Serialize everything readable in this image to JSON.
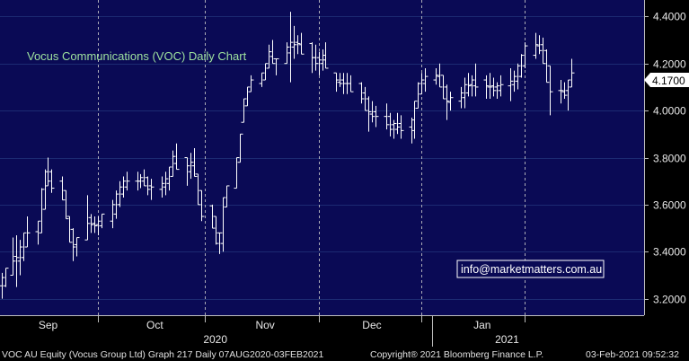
{
  "chart_data": {
    "type": "bar",
    "subtype": "ohlc",
    "title": "Vocus Communications (VOC) Daily Chart",
    "watermark": "info@marketmatters.com.au",
    "last_price_label": "4.1700",
    "y_ticks": [
      "4.4000",
      "4.2000",
      "4.0000",
      "3.8000",
      "3.6000",
      "3.4000",
      "3.2000"
    ],
    "y_tick_values": [
      4.4,
      4.2,
      4.0,
      3.8,
      3.6,
      3.4,
      3.2
    ],
    "ylim": [
      3.13,
      4.47
    ],
    "grid": true,
    "month_labels": [
      {
        "label": "Sep",
        "day": 13
      },
      {
        "label": "Oct",
        "day": 43
      },
      {
        "label": "Nov",
        "day": 74
      },
      {
        "label": "Dec",
        "day": 104
      },
      {
        "label": "Jan",
        "day": 135
      }
    ],
    "month_separators_day": [
      27,
      57,
      89,
      118,
      147
    ],
    "year_labels": [
      {
        "label": "2020",
        "day": 60
      },
      {
        "label": "2021",
        "day": 142
      }
    ],
    "year_separator_day": 121,
    "x_range_days": [
      0,
      180
    ],
    "start_date": "2020-08-07",
    "series": [
      {
        "values": [
          [
            0,
            3.31,
            3.2
          ],
          [
            1,
            3.33,
            3.25
          ],
          [
            3,
            3.46,
            3.3
          ],
          [
            4,
            3.47,
            3.25
          ],
          [
            5,
            3.45,
            3.3
          ],
          [
            6,
            3.48,
            3.36
          ],
          [
            7,
            3.55,
            3.42
          ],
          [
            10,
            3.53,
            3.43
          ],
          [
            11,
            3.67,
            3.48
          ],
          [
            12,
            3.75,
            3.58
          ],
          [
            13,
            3.8,
            3.68
          ],
          [
            14,
            3.75,
            3.65
          ],
          [
            17,
            3.72,
            3.62
          ],
          [
            18,
            3.66,
            3.54
          ],
          [
            19,
            3.55,
            3.44
          ],
          [
            20,
            3.5,
            3.36
          ],
          [
            21,
            3.46,
            3.38
          ],
          [
            24,
            3.64,
            3.45
          ],
          [
            25,
            3.56,
            3.48
          ],
          [
            26,
            3.55,
            3.48
          ],
          [
            27,
            3.55,
            3.47
          ],
          [
            28,
            3.56,
            3.5
          ],
          [
            31,
            3.62,
            3.5
          ],
          [
            32,
            3.66,
            3.54
          ],
          [
            33,
            3.7,
            3.59
          ],
          [
            34,
            3.72,
            3.63
          ],
          [
            35,
            3.74,
            3.66
          ],
          [
            38,
            3.74,
            3.66
          ],
          [
            39,
            3.73,
            3.67
          ],
          [
            40,
            3.75,
            3.68
          ],
          [
            41,
            3.72,
            3.64
          ],
          [
            42,
            3.71,
            3.62
          ],
          [
            45,
            3.72,
            3.63
          ],
          [
            46,
            3.74,
            3.64
          ],
          [
            47,
            3.76,
            3.66
          ],
          [
            48,
            3.83,
            3.72
          ],
          [
            49,
            3.86,
            3.75
          ],
          [
            52,
            3.8,
            3.68
          ],
          [
            53,
            3.82,
            3.71
          ],
          [
            54,
            3.84,
            3.72
          ],
          [
            55,
            3.73,
            3.6
          ],
          [
            56,
            3.66,
            3.53
          ],
          [
            59,
            3.6,
            3.5
          ],
          [
            60,
            3.55,
            3.43
          ],
          [
            61,
            3.48,
            3.39
          ],
          [
            62,
            3.63,
            3.4
          ],
          [
            63,
            3.68,
            3.59
          ],
          [
            66,
            3.8,
            3.67
          ],
          [
            67,
            3.9,
            3.78
          ],
          [
            68,
            4.05,
            3.95
          ],
          [
            69,
            4.1,
            4.02
          ],
          [
            70,
            4.15,
            4.08
          ],
          [
            73,
            4.16,
            4.1
          ],
          [
            74,
            4.2,
            4.13
          ],
          [
            75,
            4.28,
            4.18
          ],
          [
            76,
            4.3,
            4.2
          ],
          [
            77,
            4.22,
            4.15
          ],
          [
            80,
            4.29,
            4.2
          ],
          [
            81,
            4.42,
            4.12
          ],
          [
            82,
            4.36,
            4.22
          ],
          [
            83,
            4.32,
            4.24
          ],
          [
            84,
            4.33,
            4.24
          ],
          [
            87,
            4.29,
            4.16
          ],
          [
            88,
            4.28,
            4.17
          ],
          [
            89,
            4.25,
            4.15
          ],
          [
            90,
            4.26,
            4.17
          ],
          [
            91,
            4.29,
            4.18
          ],
          [
            94,
            4.16,
            4.08
          ],
          [
            95,
            4.16,
            4.1
          ],
          [
            96,
            4.16,
            4.07
          ],
          [
            97,
            4.16,
            4.07
          ],
          [
            98,
            4.15,
            4.08
          ],
          [
            101,
            4.12,
            4.03
          ],
          [
            102,
            4.1,
            4.0
          ],
          [
            103,
            4.06,
            3.91
          ],
          [
            104,
            4.04,
            3.95
          ],
          [
            105,
            4.02,
            3.93
          ],
          [
            108,
            4.03,
            3.92
          ],
          [
            109,
            3.99,
            3.89
          ],
          [
            110,
            3.96,
            3.88
          ],
          [
            111,
            3.99,
            3.9
          ],
          [
            112,
            3.98,
            3.88
          ],
          [
            115,
            3.97,
            3.86
          ],
          [
            116,
            4.04,
            3.88
          ],
          [
            117,
            4.12,
            4.01
          ],
          [
            118,
            4.16,
            4.07
          ],
          [
            119,
            4.18,
            4.08
          ],
          [
            122,
            4.18,
            4.11
          ],
          [
            123,
            4.2,
            4.1
          ],
          [
            124,
            4.15,
            4.05
          ],
          [
            125,
            4.11,
            3.96
          ],
          [
            126,
            4.08,
            4.0
          ],
          [
            129,
            4.1,
            4.01
          ],
          [
            130,
            4.14,
            4.01
          ],
          [
            131,
            4.16,
            4.06
          ],
          [
            132,
            4.15,
            4.06
          ],
          [
            133,
            4.2,
            4.06
          ],
          [
            136,
            4.15,
            4.05
          ],
          [
            137,
            4.16,
            4.05
          ],
          [
            138,
            4.14,
            4.06
          ],
          [
            139,
            4.12,
            4.05
          ],
          [
            140,
            4.15,
            4.06
          ],
          [
            143,
            4.18,
            4.04
          ],
          [
            144,
            4.17,
            4.08
          ],
          [
            145,
            4.2,
            4.09
          ],
          [
            146,
            4.24,
            4.14
          ],
          [
            147,
            4.29,
            4.18
          ],
          [
            150,
            4.33,
            4.22
          ],
          [
            151,
            4.32,
            4.24
          ],
          [
            152,
            4.31,
            4.2
          ],
          [
            153,
            4.26,
            4.12
          ],
          [
            154,
            4.19,
            3.98
          ],
          [
            157,
            4.13,
            4.03
          ],
          [
            158,
            4.12,
            4.05
          ],
          [
            159,
            4.13,
            4.0
          ],
          [
            160,
            4.22,
            4.1
          ]
        ]
      }
    ]
  },
  "footer": {
    "left": "VOC AU Equity (Vocus Group Ltd) Graph 217  Daily 07AUG2020-03FEB2021",
    "center": "Copyright® 2021 Bloomberg Finance L.P.",
    "right": "03-Feb-2021 09:52:32"
  },
  "colors": {
    "background": "#000000",
    "plot_background": "#0a0a55",
    "grid": "#1c2a72",
    "bars": "#ffffff",
    "title": "#9fe39f",
    "separator": "#c9c9c9"
  }
}
